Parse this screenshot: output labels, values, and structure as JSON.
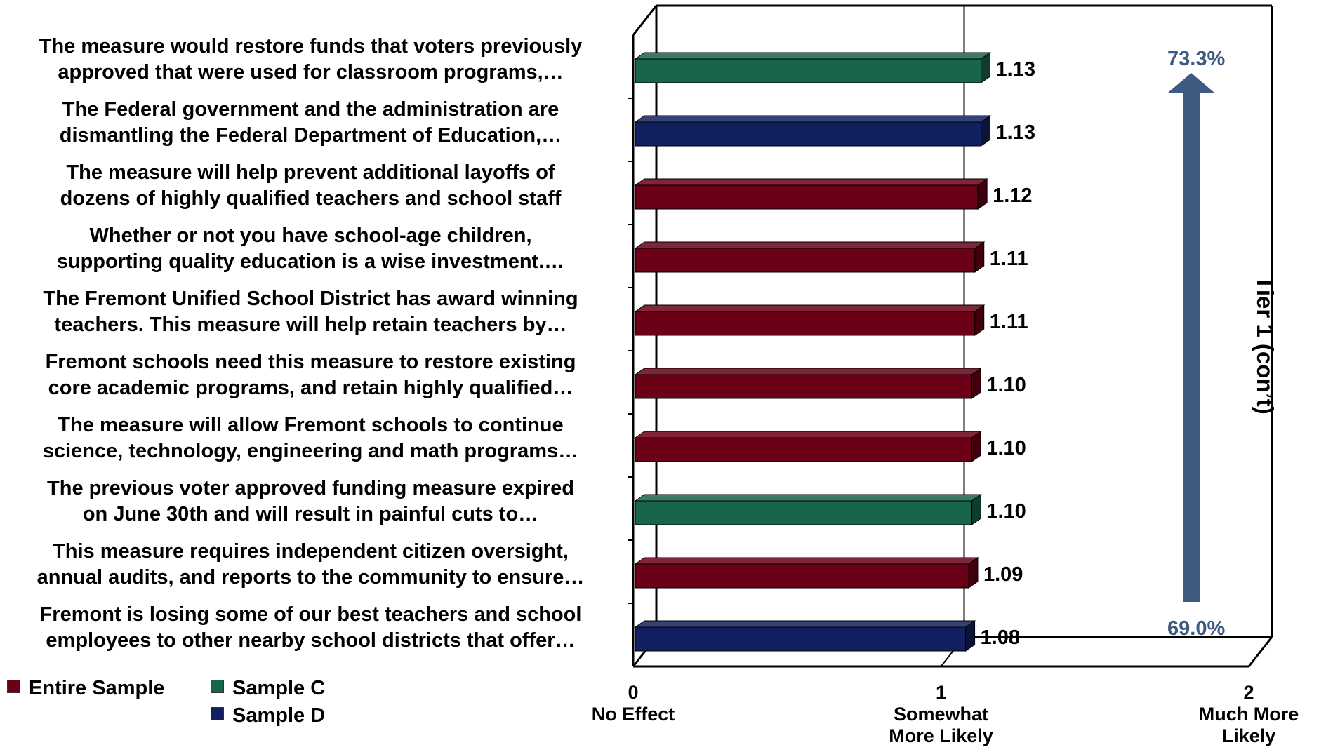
{
  "chart_data": {
    "type": "bar",
    "orientation": "horizontal",
    "categories": [
      "The measure would restore funds that voters previously\napproved that were used for classroom programs,…",
      "The Federal government and the administration are\ndismantling the Federal Department of Education,…",
      "The measure will help prevent additional layoffs of\ndozens of highly qualified teachers and school staff",
      "Whether or not you have school-age children,\nsupporting quality education is a wise investment.…",
      "The Fremont Unified School District has award winning\nteachers. This measure will help retain teachers by…",
      "Fremont schools need this measure to restore existing\ncore academic programs, and retain highly qualified…",
      "The measure will allow Fremont schools to continue\nscience, technology, engineering and math programs…",
      "The previous voter approved funding measure expired\non June 30th and will result in painful cuts to…",
      "This measure requires independent citizen oversight,\nannual audits, and reports to the community to ensure…",
      "Fremont is losing some of our best teachers and school\nemployees to other nearby school districts that offer…"
    ],
    "values": [
      1.13,
      1.13,
      1.12,
      1.11,
      1.11,
      1.1,
      1.1,
      1.1,
      1.09,
      1.08
    ],
    "value_labels": [
      "1.13",
      "1.13",
      "1.12",
      "1.11",
      "1.11",
      "1.10",
      "1.10",
      "1.10",
      "1.09",
      "1.08"
    ],
    "bar_series": [
      "Sample C",
      "Sample D",
      "Entire Sample",
      "Entire Sample",
      "Entire Sample",
      "Entire Sample",
      "Entire Sample",
      "Sample C",
      "Entire Sample",
      "Sample D"
    ],
    "legend": [
      {
        "name": "Entire Sample",
        "color": "#6b0016"
      },
      {
        "name": "Sample C",
        "color": "#176649"
      },
      {
        "name": "Sample D",
        "color": "#132060"
      }
    ],
    "xlim": [
      0,
      2
    ],
    "xticks": [
      0,
      1,
      2
    ],
    "tick_labels": [
      "0\nNo Effect",
      "1\nSomewhat\nMore  Likely",
      "2\nMuch More\nLikely"
    ],
    "grid": "vertical at 1",
    "legend_position": "bottom-left",
    "annotations": {
      "top_pct": "73.3%",
      "bottom_pct": "69.0%",
      "tier_label": "Tier 1 (con’t)",
      "arrow_color": "#3d5a80"
    }
  }
}
